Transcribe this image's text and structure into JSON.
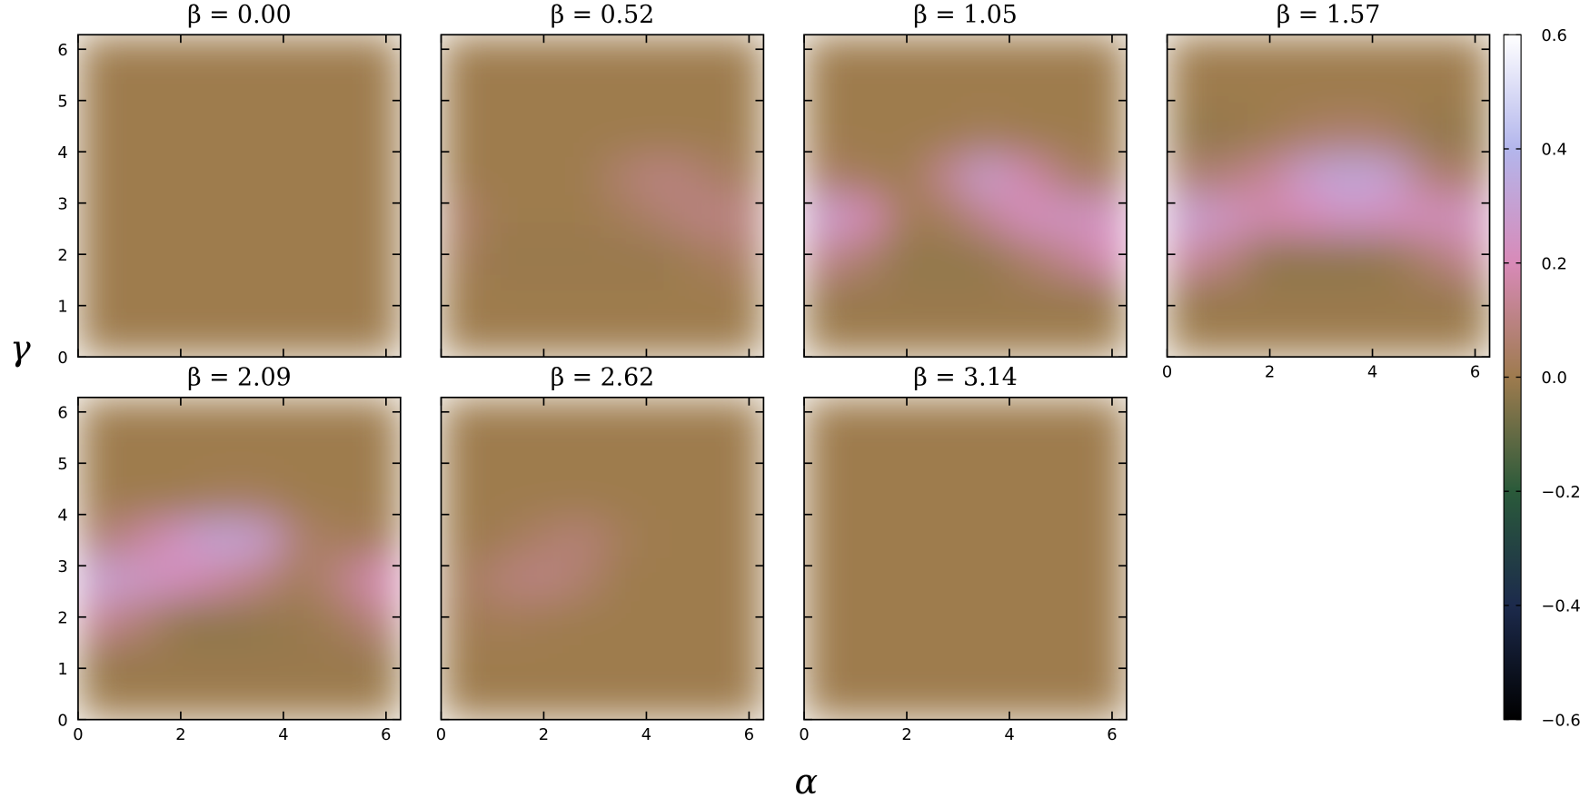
{
  "chart_data": {
    "type": "heatmap",
    "xlabel": "α",
    "ylabel": "γ",
    "xlim": [
      0,
      6.283
    ],
    "ylim": [
      0,
      6.283
    ],
    "xticks": [
      0,
      2,
      4,
      6
    ],
    "yticks": [
      0,
      1,
      2,
      3,
      4,
      5,
      6
    ],
    "colorbar": {
      "lim": [
        -0.6,
        0.6
      ],
      "ticks": [
        0.6,
        0.4,
        0.2,
        {
          "value": 0,
          "label": "0.0"
        },
        {
          "value": -0.2,
          "label": "−0.2"
        },
        {
          "value": -0.4,
          "label": "−0.4"
        },
        {
          "value": -0.6,
          "label": "−0.6"
        }
      ],
      "colors": [
        "#000000",
        "#1c2a4c",
        "#2a5a3a",
        "#9e7b4e",
        "#d88ab8",
        "#b3b6ec",
        "#ffffff"
      ]
    },
    "panels": [
      {
        "title": "β = 0.00",
        "z": [
          [
            0,
            0,
            0,
            0,
            0,
            0,
            0,
            0
          ],
          [
            0,
            0,
            0,
            0,
            0,
            0,
            0,
            0
          ],
          [
            0,
            0,
            0,
            0,
            0,
            0,
            0,
            0
          ],
          [
            0,
            0,
            0,
            0,
            0,
            0,
            0,
            0
          ],
          [
            0,
            0,
            0,
            0,
            0,
            0,
            0,
            0
          ],
          [
            0,
            0,
            0,
            0,
            0,
            0,
            0,
            0
          ],
          [
            0,
            0,
            0,
            0,
            0,
            0,
            0,
            0
          ],
          [
            0,
            0,
            0,
            0,
            0,
            0,
            0,
            0
          ]
        ]
      },
      {
        "title": "β = 0.52",
        "z": [
          [
            0,
            0,
            0,
            0,
            0,
            0,
            0,
            0
          ],
          [
            0,
            0,
            0,
            0,
            0,
            0,
            0,
            0
          ],
          [
            0.02,
            -0.01,
            -0.01,
            -0.01,
            -0.01,
            -0.01,
            0.02,
            0.05
          ],
          [
            0.05,
            0,
            0,
            0,
            0.02,
            0.06,
            0.1,
            0.1
          ],
          [
            0,
            0,
            0,
            0,
            0.06,
            0.1,
            0.06,
            0.02
          ],
          [
            0,
            0,
            0,
            0,
            0,
            0,
            0,
            0
          ],
          [
            0,
            0,
            0,
            0,
            0,
            0,
            0,
            0
          ],
          [
            0,
            0,
            0,
            0,
            0,
            0,
            0,
            0
          ]
        ]
      },
      {
        "title": "β = 1.05",
        "z": [
          [
            0,
            0,
            0,
            0,
            0,
            0,
            0,
            0
          ],
          [
            -0.01,
            -0.01,
            -0.01,
            -0.01,
            -0.01,
            -0.01,
            -0.01,
            -0.01
          ],
          [
            0.12,
            0.06,
            -0.02,
            -0.02,
            -0.02,
            0.05,
            0.12,
            0.2
          ],
          [
            0.28,
            0.2,
            0.02,
            0.02,
            0.12,
            0.22,
            0.24,
            0.24
          ],
          [
            0.04,
            0.02,
            0,
            0.12,
            0.28,
            0.18,
            0.06,
            0.02
          ],
          [
            0,
            0,
            0,
            0,
            0.02,
            0,
            0,
            0
          ],
          [
            0,
            0,
            0,
            0,
            0,
            0,
            0,
            0
          ],
          [
            0,
            0,
            0,
            0,
            0,
            0,
            0,
            0
          ]
        ]
      },
      {
        "title": "β = 1.57",
        "z": [
          [
            0,
            0,
            0,
            0,
            0,
            0,
            0,
            0
          ],
          [
            -0.01,
            -0.01,
            -0.01,
            -0.01,
            -0.01,
            -0.01,
            -0.01,
            -0.01
          ],
          [
            0.16,
            0.1,
            -0.03,
            -0.03,
            -0.03,
            -0.02,
            0.06,
            0.14
          ],
          [
            0.3,
            0.24,
            0.18,
            0.2,
            0.24,
            0.22,
            0.22,
            0.24
          ],
          [
            0.06,
            0.08,
            0.14,
            0.28,
            0.34,
            0.3,
            0.08,
            0.04
          ],
          [
            -0.02,
            -0.02,
            0,
            0.04,
            0.06,
            0.04,
            -0.02,
            -0.02
          ],
          [
            0,
            0,
            0,
            0,
            0,
            0,
            0,
            0
          ],
          [
            0,
            0,
            0,
            0,
            0,
            0,
            0,
            0
          ]
        ]
      },
      {
        "title": "β = 2.09",
        "z": [
          [
            0,
            0,
            0,
            0,
            0,
            0,
            0,
            0
          ],
          [
            -0.01,
            -0.01,
            -0.01,
            -0.01,
            -0.01,
            -0.01,
            -0.01,
            -0.01
          ],
          [
            0.14,
            0.08,
            -0.02,
            -0.03,
            -0.02,
            -0.01,
            0.02,
            0.1
          ],
          [
            0.3,
            0.26,
            0.22,
            0.16,
            0.1,
            0.02,
            0.1,
            0.2
          ],
          [
            0.06,
            0.14,
            0.24,
            0.32,
            0.28,
            0.06,
            0.02,
            0.02
          ],
          [
            0,
            0,
            0,
            0.02,
            0.02,
            0,
            0,
            0
          ],
          [
            0,
            0,
            0,
            0,
            0,
            0,
            0,
            0
          ],
          [
            0,
            0,
            0,
            0,
            0,
            0,
            0,
            0
          ]
        ]
      },
      {
        "title": "β = 2.62",
        "z": [
          [
            0,
            0,
            0,
            0,
            0,
            0,
            0,
            0
          ],
          [
            0,
            0,
            0,
            0,
            0,
            0,
            0,
            0
          ],
          [
            0.01,
            0.02,
            0.01,
            0,
            0,
            0,
            0,
            0
          ],
          [
            0.02,
            0.08,
            0.1,
            0.06,
            0,
            0,
            0,
            0
          ],
          [
            0,
            0.01,
            0.05,
            0.08,
            0.02,
            0,
            0,
            0
          ],
          [
            0,
            0,
            0,
            0,
            0,
            0,
            0,
            0
          ],
          [
            0,
            0,
            0,
            0,
            0,
            0,
            0,
            0
          ],
          [
            0,
            0,
            0,
            0,
            0,
            0,
            0,
            0
          ]
        ]
      },
      {
        "title": "β = 3.14",
        "z": [
          [
            0,
            0,
            0,
            0,
            0,
            0,
            0,
            0
          ],
          [
            0,
            0,
            0,
            0,
            0,
            0,
            0,
            0
          ],
          [
            0,
            0,
            0,
            0,
            0,
            0,
            0,
            0
          ],
          [
            0,
            0,
            0,
            0,
            0,
            0,
            0,
            0
          ],
          [
            0,
            0,
            0,
            0,
            0,
            0,
            0,
            0
          ],
          [
            0,
            0,
            0,
            0,
            0,
            0,
            0,
            0
          ],
          [
            0,
            0,
            0,
            0,
            0,
            0,
            0,
            0
          ],
          [
            0,
            0,
            0,
            0,
            0,
            0,
            0,
            0
          ]
        ]
      }
    ]
  }
}
